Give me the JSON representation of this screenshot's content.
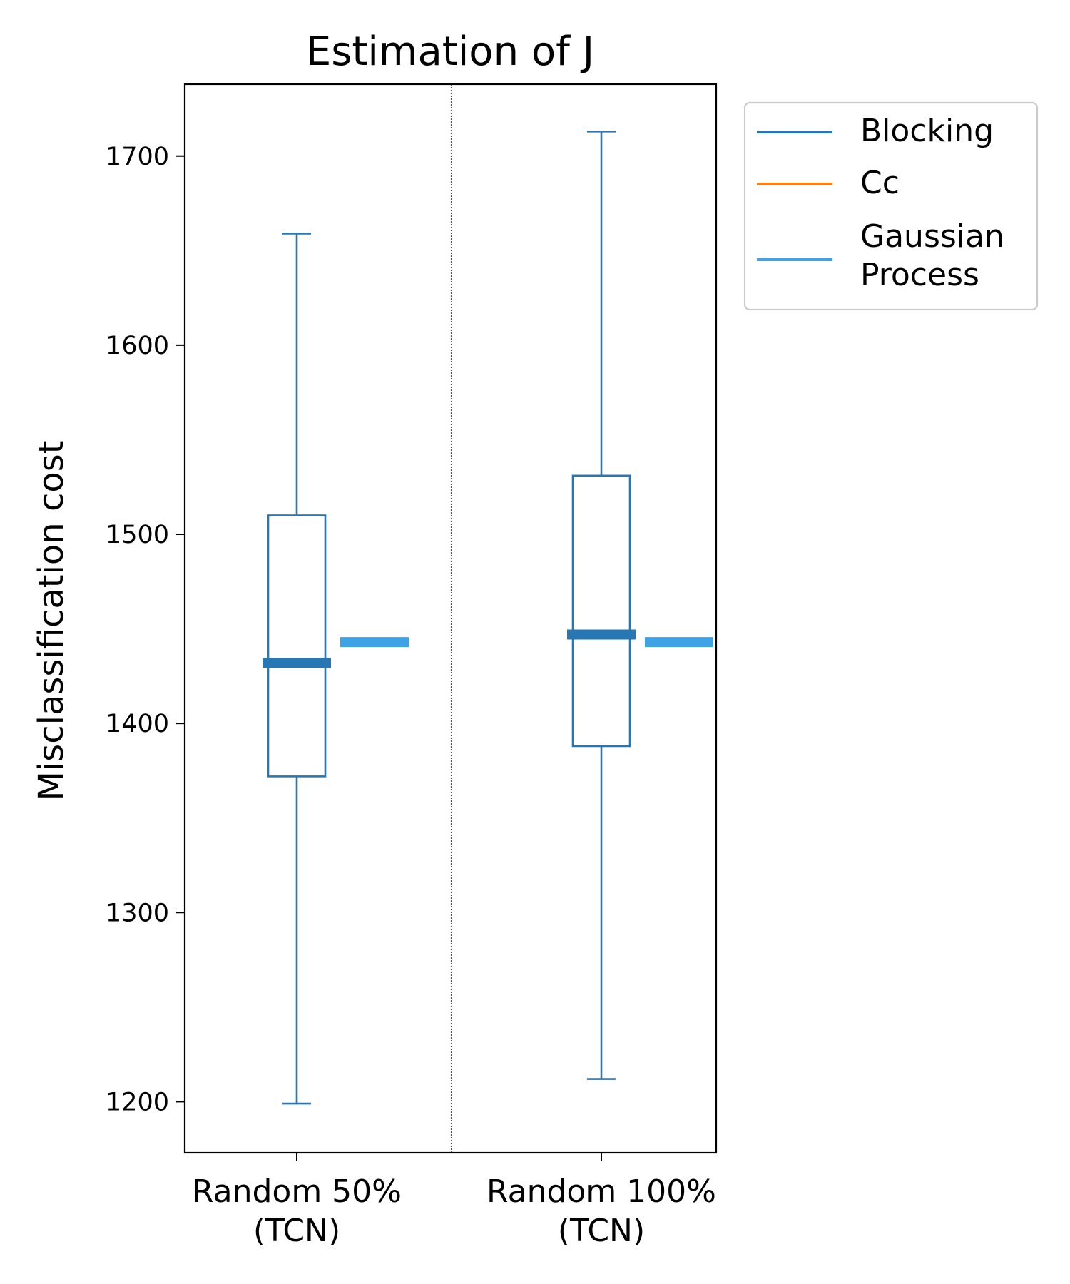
{
  "chart_data": {
    "type": "box",
    "title": "Estimation of J",
    "ylabel": "Misclassification cost",
    "xlabel": "",
    "ylim": [
      1173,
      1738
    ],
    "yticks": [
      1200,
      1300,
      1400,
      1500,
      1600,
      1700
    ],
    "categories": [
      {
        "line1": "Random 50%",
        "line2": "(TCN)"
      },
      {
        "line1": "Random 100%",
        "line2": "(TCN)"
      }
    ],
    "series": [
      {
        "name": "Blocking",
        "color": "#2777b4",
        "kind": "boxplot",
        "boxes": [
          {
            "whisker_low": 1199,
            "q1": 1372,
            "median": 1432,
            "q3": 1510,
            "whisker_high": 1659
          },
          {
            "whisker_low": 1212,
            "q1": 1388,
            "median": 1447,
            "q3": 1531,
            "whisker_high": 1713
          }
        ]
      },
      {
        "name": "Cc",
        "color": "#ff7f0e",
        "kind": "point",
        "values": [
          null,
          null
        ]
      },
      {
        "name": "Gaussian Process",
        "legend_lines": [
          "Gaussian",
          "Process"
        ],
        "color": "#3fa2e5",
        "kind": "point",
        "values": [
          1443,
          1443
        ]
      }
    ],
    "legend_position": "upper-right-outside",
    "grid": false,
    "category_separator": true
  }
}
